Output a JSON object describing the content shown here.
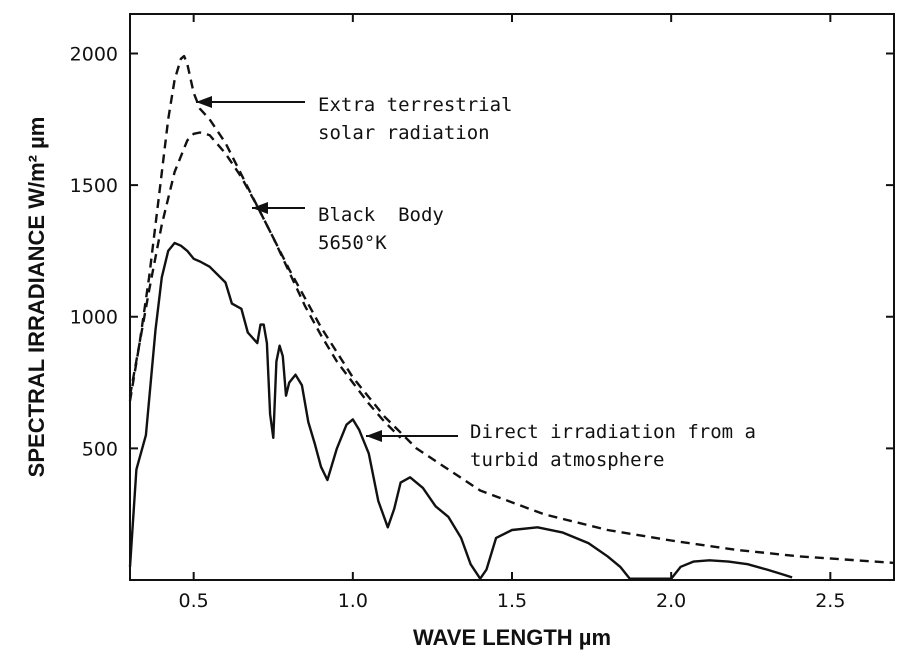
{
  "chart_data": {
    "type": "line",
    "title": "",
    "xlabel": "WAVE LENGTH µm",
    "ylabel": "SPECTRAL IRRADIANCE W/m² µm",
    "xlim": [
      0.3,
      2.7
    ],
    "ylim": [
      0,
      2150
    ],
    "grid": false,
    "legend": "none",
    "x_ticks": [
      0.5,
      1.0,
      1.5,
      2.0,
      2.5
    ],
    "x_tick_labels": [
      "0.5",
      "1.0",
      "1.5",
      "2.0",
      "2.5"
    ],
    "y_ticks": [
      500,
      1000,
      1500,
      2000
    ],
    "y_tick_labels": [
      "500",
      "1000",
      "1500",
      "2000"
    ],
    "series": [
      {
        "style": "dashed",
        "x": [
          0.3,
          0.33,
          0.36,
          0.39,
          0.42,
          0.44,
          0.46,
          0.47,
          0.48,
          0.5,
          0.52,
          0.55,
          0.6,
          0.65,
          0.7,
          0.75,
          0.8,
          0.9,
          1.0,
          1.1,
          1.2,
          1.4,
          1.6,
          1.8,
          2.0,
          2.2,
          2.4,
          2.7
        ],
        "y": [
          680,
          900,
          1150,
          1450,
          1750,
          1900,
          1980,
          1990,
          1960,
          1850,
          1790,
          1750,
          1660,
          1540,
          1420,
          1300,
          1180,
          960,
          770,
          620,
          500,
          340,
          250,
          190,
          150,
          115,
          90,
          65
        ]
      },
      {
        "style": "dashed",
        "x": [
          0.3,
          0.33,
          0.36,
          0.4,
          0.44,
          0.48,
          0.5,
          0.52,
          0.55,
          0.6,
          0.65,
          0.7,
          0.75,
          0.8,
          0.85,
          0.9,
          0.95,
          1.0,
          1.05,
          1.1,
          1.15
        ],
        "y": [
          700,
          900,
          1100,
          1350,
          1550,
          1670,
          1695,
          1700,
          1690,
          1620,
          1530,
          1420,
          1300,
          1170,
          1040,
          930,
          830,
          750,
          670,
          600,
          540
        ]
      },
      {
        "style": "solid",
        "x": [
          0.3,
          0.32,
          0.35,
          0.38,
          0.4,
          0.42,
          0.44,
          0.46,
          0.48,
          0.5,
          0.52,
          0.55,
          0.6,
          0.62,
          0.65,
          0.67,
          0.7,
          0.71,
          0.72,
          0.73,
          0.74,
          0.75,
          0.76,
          0.77,
          0.78,
          0.79,
          0.8,
          0.82,
          0.84,
          0.86,
          0.88,
          0.9,
          0.92,
          0.95,
          0.98,
          1.0,
          1.02,
          1.05,
          1.08,
          1.11,
          1.13,
          1.15,
          1.18,
          1.22,
          1.26,
          1.3,
          1.34,
          1.37,
          1.4,
          1.42,
          1.45,
          1.5,
          1.58,
          1.66,
          1.74,
          1.8,
          1.84,
          1.87,
          2.0,
          2.03,
          2.07,
          2.12,
          2.18,
          2.24,
          2.3,
          2.34,
          2.38
        ],
        "y": [
          50,
          420,
          550,
          950,
          1150,
          1250,
          1280,
          1270,
          1250,
          1220,
          1210,
          1190,
          1130,
          1050,
          1030,
          940,
          900,
          970,
          970,
          900,
          630,
          540,
          830,
          890,
          850,
          700,
          750,
          780,
          740,
          600,
          520,
          430,
          380,
          500,
          590,
          610,
          570,
          480,
          300,
          200,
          270,
          370,
          390,
          350,
          280,
          240,
          160,
          60,
          5,
          40,
          160,
          190,
          200,
          180,
          140,
          90,
          50,
          5,
          5,
          50,
          70,
          75,
          70,
          60,
          40,
          25,
          10
        ]
      }
    ],
    "annotations": [
      {
        "lines": [
          "Extra terrestrial",
          "solar radiation"
        ]
      },
      {
        "lines": [
          "Black  Body",
          "5650°K"
        ]
      },
      {
        "lines": [
          "Direct irradiation from a",
          "turbid atmosphere"
        ]
      }
    ]
  }
}
